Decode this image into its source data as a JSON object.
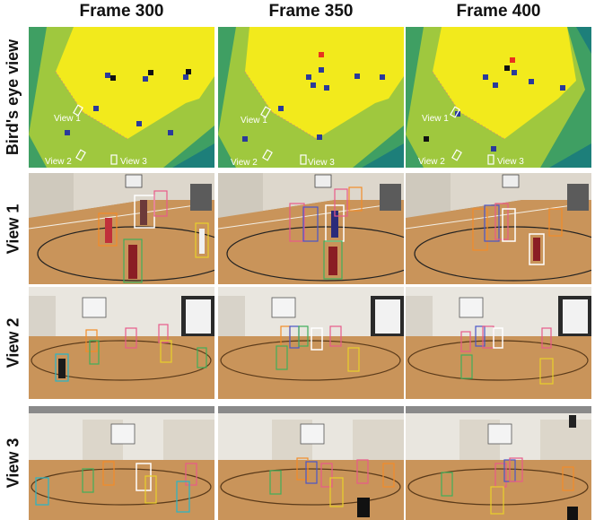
{
  "columns": [
    {
      "title": "Frame 300"
    },
    {
      "title": "Frame 350"
    },
    {
      "title": "Frame 400"
    }
  ],
  "rows": [
    {
      "label": "Bird's eye view"
    },
    {
      "label": "View 1"
    },
    {
      "label": "View 2"
    },
    {
      "label": "View 3"
    }
  ],
  "bev_labels": {
    "view1": "View 1",
    "view2": "View 2",
    "view3": "View 3"
  },
  "colors": {
    "field_yellow": "#f2ea1c",
    "light_green": "#9fc83e",
    "mid_green": "#3f9f63",
    "dark_teal": "#1d7f7a",
    "marker_blue": "#2a3a9a",
    "marker_black": "#111111",
    "marker_red": "#e8321e",
    "court_wood": "#c9945a",
    "wall": "#e9e6df"
  }
}
